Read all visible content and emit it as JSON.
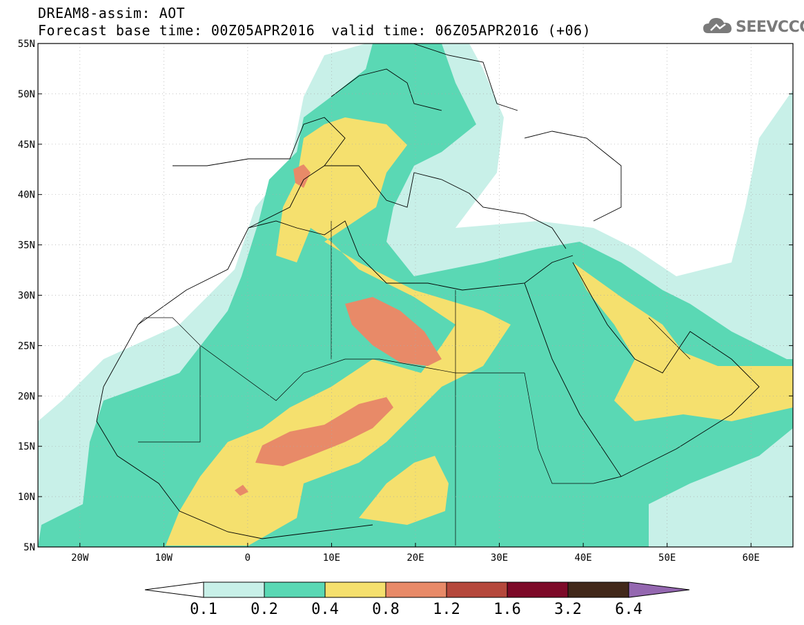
{
  "header": {
    "title": "DREAM8-assim: AOT",
    "base_time": "Forecast base time: 00Z05APR2016",
    "valid_time": "valid time: 06Z05APR2016 (+06)"
  },
  "logo": {
    "text": "SEEVCCC",
    "icon": "cloud-icon",
    "color": "#7a7a7a"
  },
  "map": {
    "lat_labels": [
      "55N",
      "50N",
      "45N",
      "40N",
      "35N",
      "30N",
      "25N",
      "20N",
      "15N",
      "10N",
      "5N"
    ],
    "lon_labels": [
      "20W",
      "10W",
      "0",
      "10E",
      "20E",
      "30E",
      "40E",
      "50E",
      "60E"
    ],
    "lon_range": [
      -25,
      65
    ],
    "lat_range": [
      5,
      55
    ],
    "grid": "dotted"
  },
  "colorbar": {
    "tick_labels": [
      "0.1",
      "0.2",
      "0.4",
      "0.8",
      "1.2",
      "1.6",
      "3.2",
      "6.4"
    ],
    "colors": [
      "#ffffff",
      "#c8f0e8",
      "#5ad8b4",
      "#f5e06e",
      "#e88a68",
      "#b5483c",
      "#7d0a28",
      "#42281a",
      "#9467b0"
    ]
  }
}
